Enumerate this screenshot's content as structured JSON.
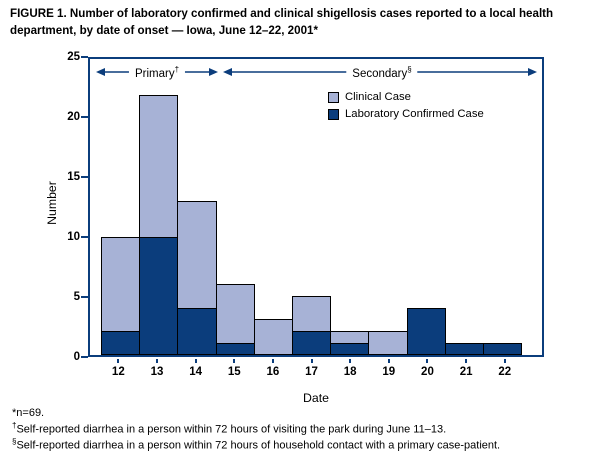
{
  "figure": {
    "title": "FIGURE 1. Number of laboratory confirmed and clinical shigellosis cases reported to a local health department, by date of onset — Iowa, June 12–22, 2001*"
  },
  "chart_data": {
    "type": "bar",
    "stacked": true,
    "title": "Number of laboratory confirmed and clinical shigellosis cases by date of onset",
    "categories": [
      "12",
      "13",
      "14",
      "15",
      "16",
      "17",
      "18",
      "19",
      "20",
      "21",
      "22"
    ],
    "series": [
      {
        "name": "Laboratory Confirmed Case",
        "color": "#0b3d7c",
        "values": [
          2,
          10,
          4,
          1,
          0,
          2,
          1,
          0,
          4,
          1,
          1
        ]
      },
      {
        "name": "Clinical Case",
        "color": "#a7b2d6",
        "values": [
          8,
          12,
          9,
          5,
          3,
          3,
          1,
          2,
          0,
          0,
          0
        ]
      }
    ],
    "totals": [
      10,
      22,
      13,
      6,
      3,
      5,
      2,
      2,
      4,
      1,
      1
    ],
    "xlabel": "Date",
    "ylabel": "Number",
    "ylim": [
      0,
      25
    ],
    "yticks": [
      0,
      5,
      10,
      15,
      20,
      25
    ],
    "grid": false,
    "legend_position": "inside-top-right",
    "legend": [
      {
        "label": "Clinical Case",
        "color": "#a7b2d6"
      },
      {
        "label": "Laboratory Confirmed Case",
        "color": "#0b3d7c"
      }
    ],
    "annotations": [
      {
        "text": "Primary",
        "marker": "†",
        "span_categories": [
          "12",
          "14"
        ]
      },
      {
        "text": "Secondary",
        "marker": "§",
        "span_categories": [
          "15",
          "22"
        ]
      }
    ]
  },
  "footnotes": [
    {
      "marker": "*",
      "text": "n=69."
    },
    {
      "marker": "†",
      "text": "Self-reported diarrhea in a person within 72 hours of visiting the park during June 11–13."
    },
    {
      "marker": "§",
      "text": "Self-reported diarrhea in a person within 72 hours of household contact with a primary case-patient."
    }
  ],
  "colors": {
    "frame": "#0b3d7c",
    "clinical": "#a7b2d6",
    "lab_confirmed": "#0b3d7c",
    "background": "#ffffff"
  }
}
